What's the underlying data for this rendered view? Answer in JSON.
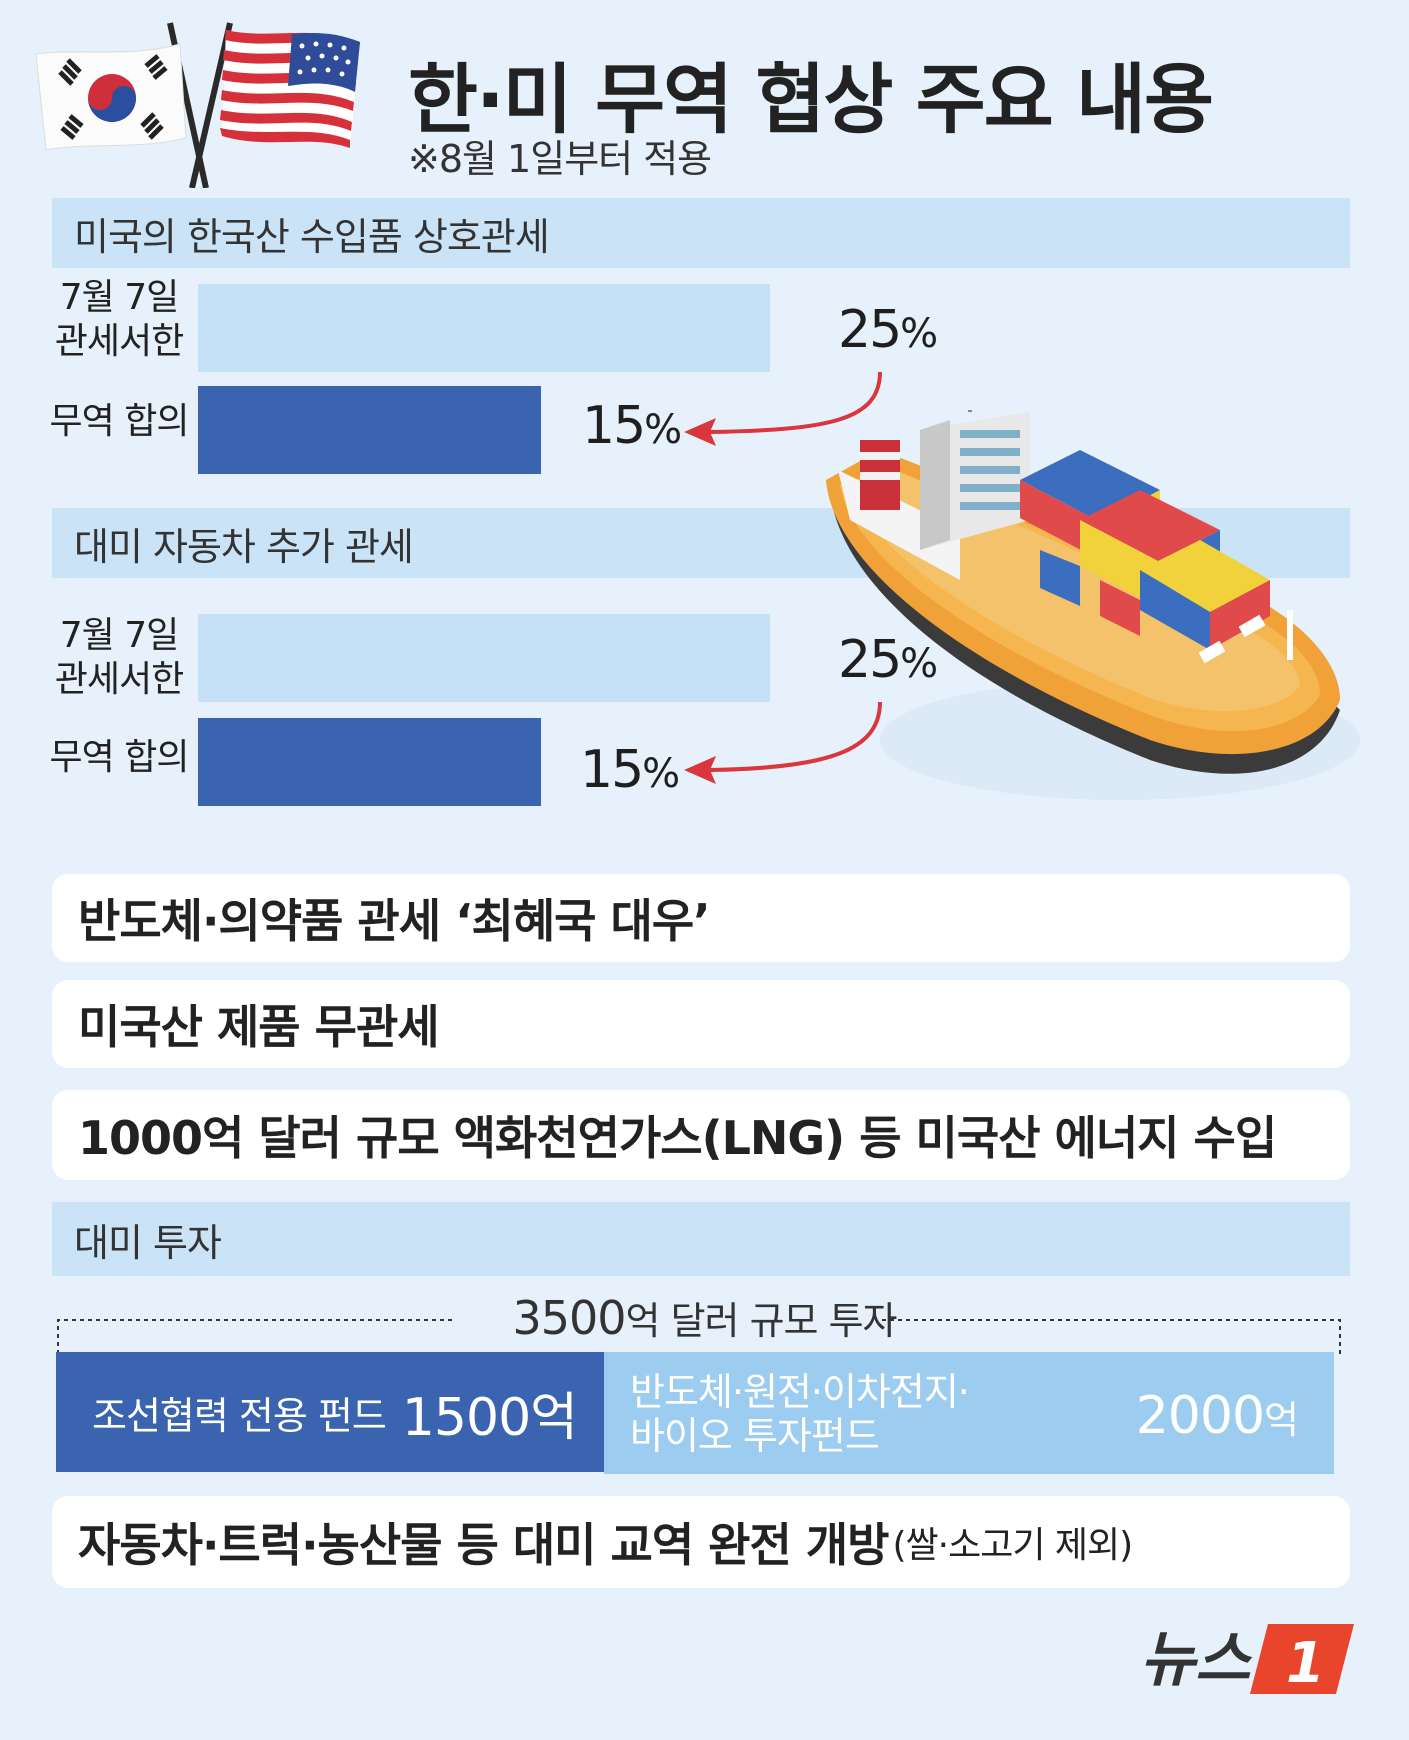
{
  "header": {
    "title": "한·미 무역 협상 주요 내용",
    "subtitle": "※8월 1일부터 적용"
  },
  "chart_data": [
    {
      "type": "bar",
      "title": "미국의 한국산 수입품 상호관세",
      "categories": [
        "7월 7일 관세서한",
        "무역 합의"
      ],
      "values": [
        25,
        15
      ],
      "value_labels": [
        "25",
        "15"
      ],
      "unit": "%",
      "xlim": [
        0,
        25
      ],
      "colors": [
        "#c6e0f6",
        "#3a63b0"
      ]
    },
    {
      "type": "bar",
      "title": "대미 자동차 추가 관세",
      "categories": [
        "7월 7일 관세서한",
        "무역 합의"
      ],
      "values": [
        25,
        15
      ],
      "value_labels": [
        "25",
        "15"
      ],
      "unit": "%",
      "xlim": [
        0,
        25
      ],
      "colors": [
        "#c6e0f6",
        "#3a63b0"
      ]
    }
  ],
  "chart1": {
    "title": "미국의 한국산 수입품 상호관세",
    "label1_line1": "7월 7일",
    "label1_line2": "관세서한",
    "label2": "무역 합의",
    "value1": "25",
    "value2": "15",
    "unit": "%"
  },
  "chart2": {
    "title": "대미 자동차 추가 관세",
    "label1_line1": "7월 7일",
    "label1_line2": "관세서한",
    "label2": "무역 합의",
    "value1": "25",
    "value2": "15",
    "unit": "%"
  },
  "items": {
    "item1": "반도체·의약품 관세 ‘최혜국 대우’",
    "item2": "미국산 제품 무관세",
    "item3": "1000억 달러 규모 액화천연가스(LNG) 등 미국산 에너지 수입"
  },
  "investment": {
    "section_title": "대미 투자",
    "total_amount": "3500",
    "total_rest": "억 달러 규모 투자",
    "fund1_label": "조선협력 전용 펀드",
    "fund1_amount": "1500억",
    "fund1_value": 1500,
    "fund2_line1": "반도체·원전·이차전지·",
    "fund2_line2": "바이오 투자펀드",
    "fund2_amount": "2000",
    "fund2_unit": "억",
    "fund2_value": 2000
  },
  "footer_item": {
    "main": "자동차·트럭·농산물 등 대미 교역 완전 개방",
    "note": "(쌀·소고기 제외)"
  },
  "logo": {
    "text": "뉴스",
    "number": "1"
  },
  "colors": {
    "background": "#e6f1fb",
    "band": "#cbe3f7",
    "bar_light": "#c6e0f6",
    "bar_dark": "#3a63b0",
    "fund_light": "#9ccdf1",
    "arrow": "#d9363e",
    "logo_red": "#e8452c"
  },
  "icons": [
    "korea-flag-icon",
    "usa-flag-icon",
    "container-ship-icon"
  ]
}
